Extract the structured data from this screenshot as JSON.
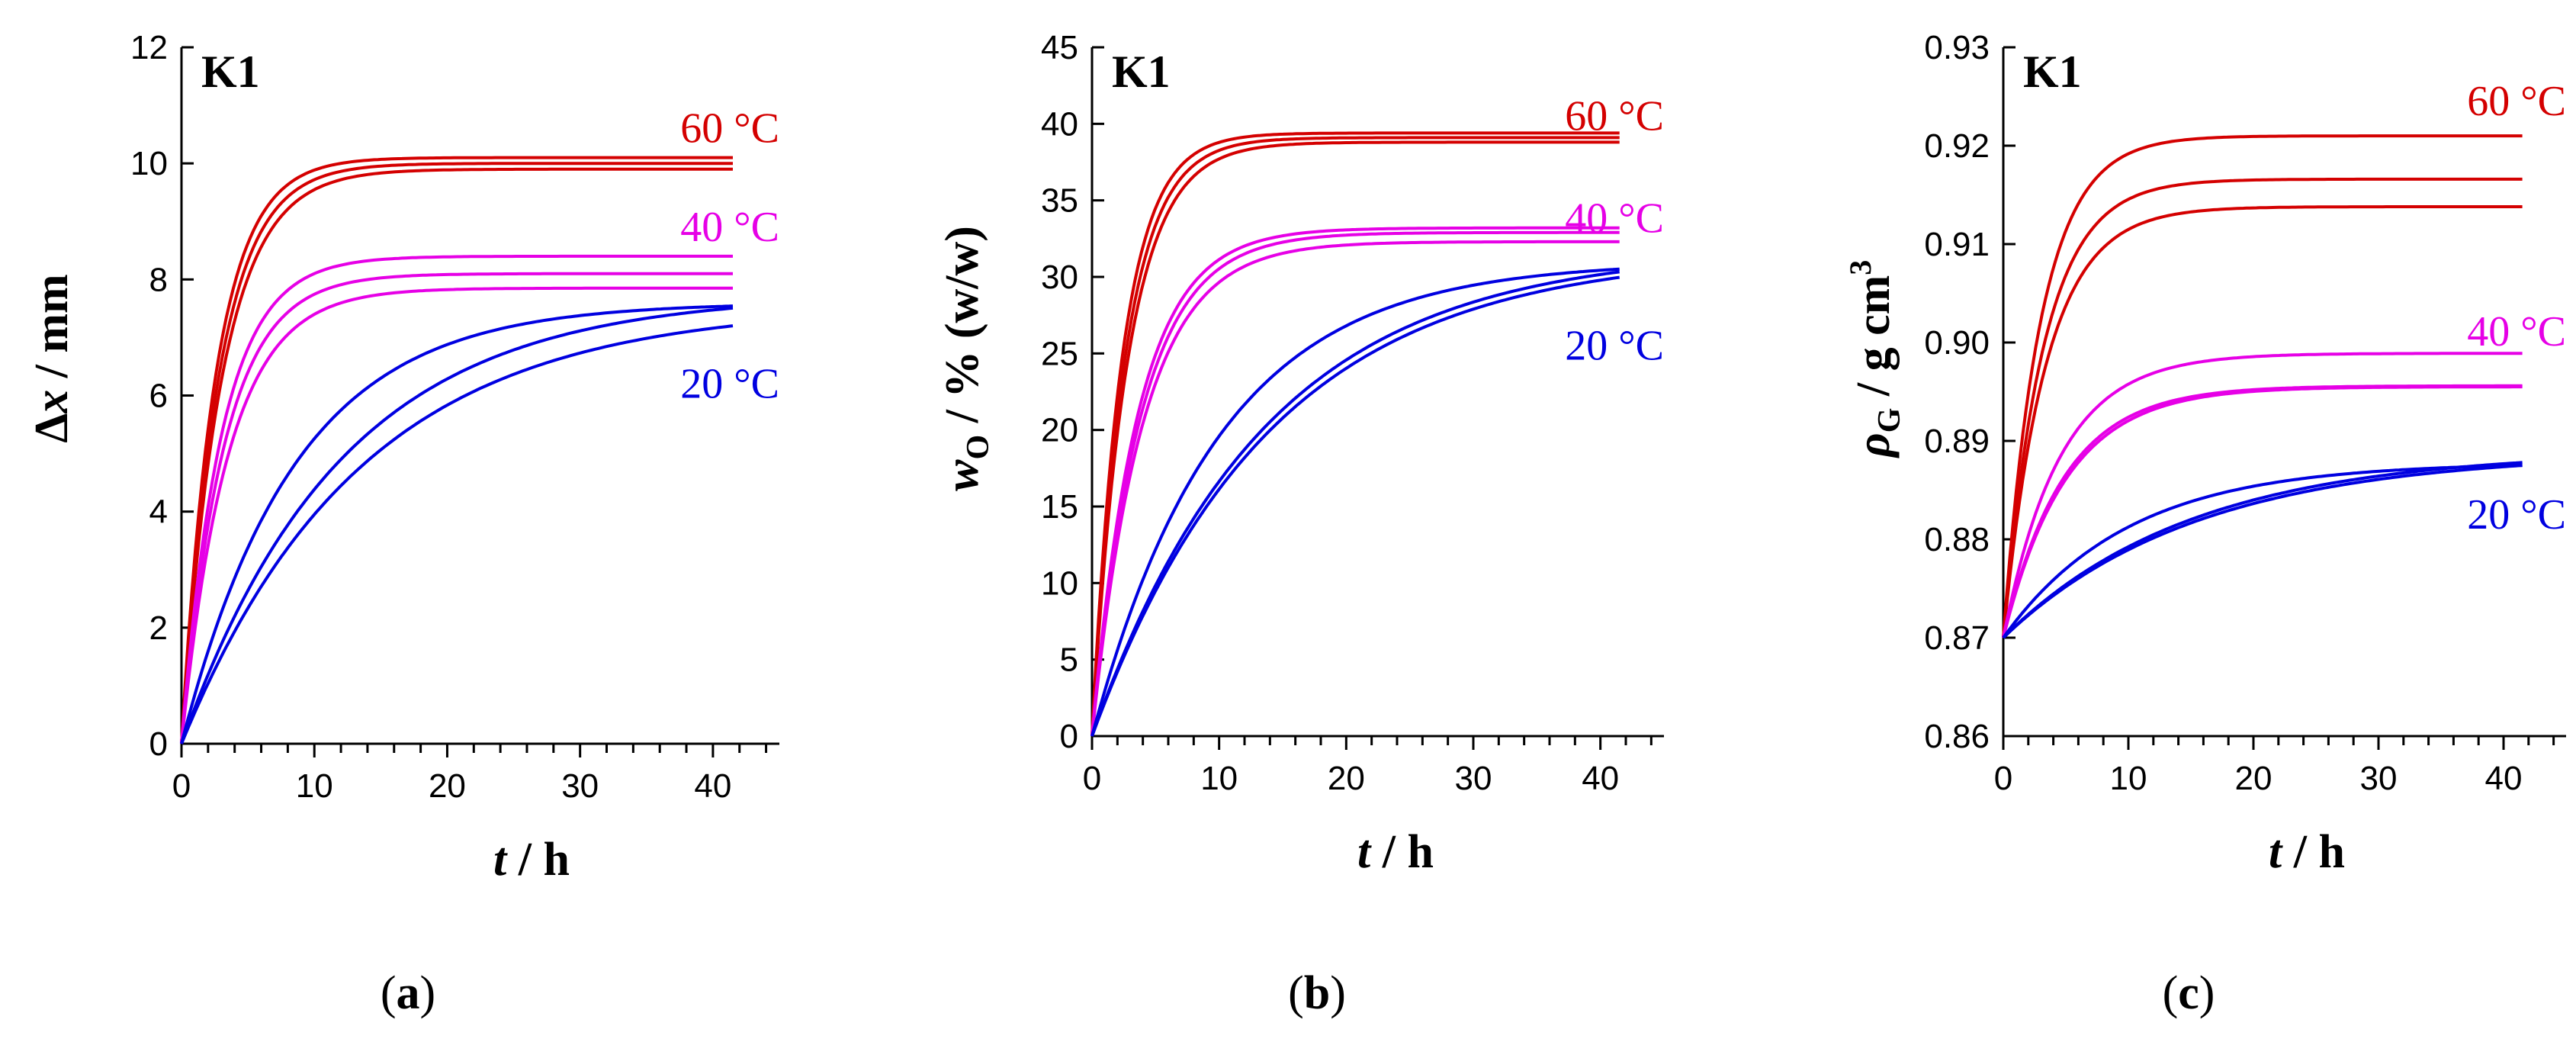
{
  "figure": {
    "colors": {
      "red": "#d40000",
      "magenta": "#e600e6",
      "blue": "#0000e0",
      "axis": "#000000"
    }
  },
  "chart_data": [
    {
      "type": "line",
      "panel": "a",
      "caption": "(a)",
      "caption_letter": "a",
      "tag": "K1",
      "xlabel_var": "t",
      "xlabel_unit": " / h",
      "ylabel_var": "Δx",
      "ylabel_unit": " / mm",
      "xlim": [
        0,
        45
      ],
      "ylim": [
        0,
        12
      ],
      "xticks": [
        0,
        10,
        20,
        30,
        40
      ],
      "yticks": [
        0,
        2,
        4,
        6,
        8,
        10,
        12
      ],
      "ytick_labels": [
        "0",
        "2",
        "4",
        "6",
        "8",
        "10",
        "12"
      ],
      "x_range": [
        0,
        41.5
      ],
      "groups": [
        {
          "label": "60 °C",
          "color": "red",
          "label_at": [
            45,
            10.6
          ],
          "curves": [
            {
              "plateau": 10.1,
              "tau": 2.6
            },
            {
              "plateau": 10.0,
              "tau": 2.8
            },
            {
              "plateau": 9.9,
              "tau": 3.0
            }
          ]
        },
        {
          "label": "40 °C",
          "color": "magenta",
          "label_at": [
            45,
            8.9
          ],
          "curves": [
            {
              "plateau": 8.4,
              "tau": 3.0
            },
            {
              "plateau": 8.1,
              "tau": 3.2
            },
            {
              "plateau": 7.85,
              "tau": 3.5
            }
          ]
        },
        {
          "label": "20 °C",
          "color": "blue",
          "label_at": [
            45,
            6.2
          ],
          "curves": [
            {
              "plateau": 7.6,
              "tau": 8.5
            },
            {
              "plateau": 7.75,
              "tau": 12.0
            },
            {
              "plateau": 7.55,
              "tau": 13.5
            }
          ]
        }
      ]
    },
    {
      "type": "line",
      "panel": "b",
      "caption": "(b)",
      "caption_letter": "b",
      "tag": "K1",
      "xlabel_var": "t",
      "xlabel_unit": " / h",
      "ylabel_var": "w",
      "ylabel_sub": "O",
      "ylabel_unit": " / % (w/w)",
      "xlim": [
        0,
        45
      ],
      "ylim": [
        0,
        45
      ],
      "xticks": [
        0,
        10,
        20,
        30,
        40
      ],
      "yticks": [
        0,
        5,
        10,
        15,
        20,
        25,
        30,
        35,
        40,
        45
      ],
      "ytick_labels": [
        "0",
        "5",
        "10",
        "15",
        "20",
        "25",
        "30",
        "35",
        "40",
        "45"
      ],
      "x_range": [
        0,
        41.5
      ],
      "groups": [
        {
          "label": "60 °C",
          "color": "red",
          "label_at": [
            45,
            40.5
          ],
          "curves": [
            {
              "plateau": 39.4,
              "tau": 2.4
            },
            {
              "plateau": 39.1,
              "tau": 2.6
            },
            {
              "plateau": 38.8,
              "tau": 2.8
            }
          ]
        },
        {
          "label": "40 °C",
          "color": "magenta",
          "label_at": [
            45,
            33.8
          ],
          "curves": [
            {
              "plateau": 33.2,
              "tau": 3.6
            },
            {
              "plateau": 32.9,
              "tau": 3.8
            },
            {
              "plateau": 32.3,
              "tau": 4.0
            }
          ]
        },
        {
          "label": "20 °C",
          "color": "blue",
          "label_at": [
            45,
            25.5
          ],
          "curves": [
            {
              "plateau": 31.0,
              "tau": 10.0
            },
            {
              "plateau": 31.8,
              "tau": 13.5
            },
            {
              "plateau": 31.6,
              "tau": 14.0
            }
          ]
        }
      ]
    },
    {
      "type": "line",
      "panel": "c",
      "caption": "(c)",
      "caption_letter": "c",
      "tag": "K1",
      "xlabel_var": "t",
      "xlabel_unit": " / h",
      "ylabel_var": "ρ",
      "ylabel_sub": "G",
      "ylabel_unit": " / g cm",
      "ylabel_sup": "3",
      "xlim": [
        0,
        45
      ],
      "ylim": [
        0.86,
        0.93
      ],
      "xticks": [
        0,
        10,
        20,
        30,
        40
      ],
      "yticks": [
        0.86,
        0.87,
        0.88,
        0.89,
        0.9,
        0.91,
        0.92,
        0.93
      ],
      "ytick_labels": [
        "0.86",
        "0.87",
        "0.88",
        "0.89",
        "0.90",
        "0.91",
        "0.92",
        "0.93"
      ],
      "x_range": [
        0,
        41.5
      ],
      "y0": 0.87,
      "groups": [
        {
          "label": "60 °C",
          "color": "red",
          "label_at": [
            45,
            0.9245
          ],
          "curves": [
            {
              "plateau": 0.921,
              "tau": 3.0
            },
            {
              "plateau": 0.9166,
              "tau": 3.2
            },
            {
              "plateau": 0.9138,
              "tau": 3.4
            }
          ]
        },
        {
          "label": "40 °C",
          "color": "magenta",
          "label_at": [
            45,
            0.9011
          ],
          "curves": [
            {
              "plateau": 0.8989,
              "tau": 4.5
            },
            {
              "plateau": 0.8956,
              "tau": 4.8
            },
            {
              "plateau": 0.8955,
              "tau": 5.0
            }
          ]
        },
        {
          "label": "20 °C",
          "color": "blue",
          "label_at": [
            45,
            0.8825
          ],
          "curves": [
            {
              "plateau": 0.8878,
              "tau": 10.0
            },
            {
              "plateau": 0.889,
              "tau": 15.0
            },
            {
              "plateau": 0.8888,
              "tau": 15.5
            }
          ]
        }
      ]
    }
  ]
}
